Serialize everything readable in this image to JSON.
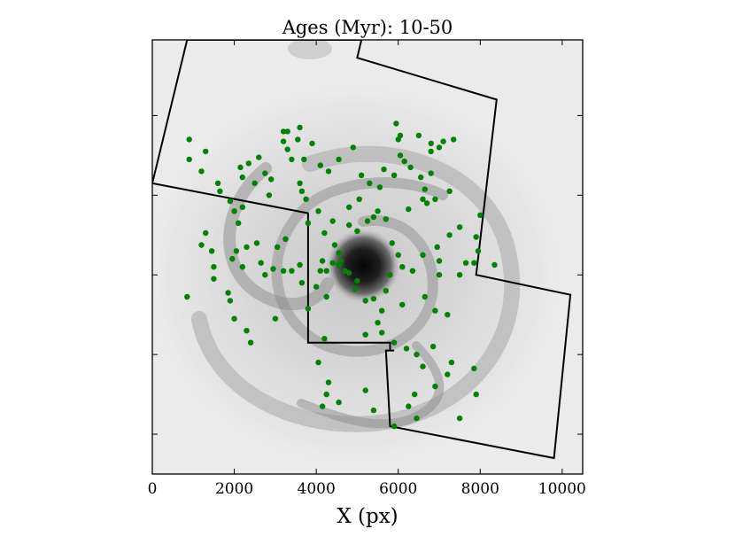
{
  "chart_data": {
    "type": "scatter",
    "title": "Ages (Myr): 10-50",
    "xlabel": "X (px)",
    "ylabel": "",
    "xlim": [
      0,
      10500
    ],
    "ylim": [
      0,
      10900
    ],
    "x_ticks": [
      0,
      2000,
      4000,
      6000,
      8000,
      10000
    ],
    "x_tick_labels": [
      "0",
      "2000",
      "4000",
      "6000",
      "8000",
      "10000"
    ],
    "y_ticks": [
      1000,
      3000,
      5000,
      7000,
      9000
    ],
    "y_tick_labels": [],
    "background_image": "grayscale galaxy map (inverted)",
    "point_color": "#008000",
    "outline_color": "#000000",
    "footprint_outline": [
      [
        850,
        10900
      ],
      [
        5100,
        10900
      ],
      [
        5000,
        10450
      ],
      [
        8400,
        9400
      ],
      [
        7900,
        5000
      ],
      [
        10200,
        4500
      ],
      [
        9800,
        400
      ],
      [
        5800,
        1200
      ],
      [
        5700,
        3100
      ],
      [
        5900,
        3100
      ],
      [
        5900,
        3100
      ],
      [
        5800,
        3100
      ],
      [
        5800,
        3300
      ],
      [
        3800,
        3300
      ],
      [
        3800,
        6550
      ],
      [
        0,
        7300
      ]
    ],
    "series": [
      {
        "values": [
          [
            900,
            8400
          ],
          [
            900,
            7900
          ],
          [
            1300,
            8100
          ],
          [
            1200,
            7600
          ],
          [
            1600,
            7300
          ],
          [
            1650,
            7100
          ],
          [
            1900,
            6850
          ],
          [
            2000,
            6600
          ],
          [
            2200,
            6700
          ],
          [
            2100,
            6300
          ],
          [
            1300,
            6050
          ],
          [
            1200,
            5750
          ],
          [
            1450,
            5600
          ],
          [
            1500,
            5200
          ],
          [
            1500,
            4900
          ],
          [
            1950,
            5400
          ],
          [
            2050,
            5600
          ],
          [
            2300,
            5700
          ],
          [
            2200,
            5200
          ],
          [
            2550,
            5800
          ],
          [
            2650,
            5300
          ],
          [
            2750,
            5000
          ],
          [
            2950,
            5150
          ],
          [
            3200,
            5100
          ],
          [
            3400,
            5100
          ],
          [
            3600,
            5250
          ],
          [
            3050,
            5700
          ],
          [
            3250,
            5900
          ],
          [
            2350,
            7800
          ],
          [
            2150,
            7700
          ],
          [
            2200,
            7450
          ],
          [
            2600,
            7950
          ],
          [
            2500,
            7300
          ],
          [
            2750,
            7550
          ],
          [
            2900,
            7400
          ],
          [
            2850,
            7000
          ],
          [
            3200,
            8350
          ],
          [
            3300,
            8150
          ],
          [
            3200,
            8600
          ],
          [
            3300,
            8600
          ],
          [
            3600,
            8700
          ],
          [
            3550,
            8400
          ],
          [
            3400,
            7900
          ],
          [
            3900,
            8300
          ],
          [
            3700,
            7900
          ],
          [
            4100,
            7750
          ],
          [
            4300,
            7600
          ],
          [
            4550,
            7900
          ],
          [
            4900,
            8200
          ],
          [
            3600,
            7300
          ],
          [
            3750,
            6900
          ],
          [
            3650,
            7100
          ],
          [
            3800,
            6300
          ],
          [
            4050,
            6600
          ],
          [
            4400,
            6350
          ],
          [
            4200,
            6050
          ],
          [
            4450,
            5750
          ],
          [
            4550,
            5550
          ],
          [
            4150,
            5350
          ],
          [
            4400,
            5300
          ],
          [
            4250,
            5100
          ],
          [
            4100,
            5100
          ],
          [
            4600,
            5350
          ],
          [
            4550,
            5250
          ],
          [
            4700,
            5100
          ],
          [
            4800,
            5050
          ],
          [
            5000,
            4850
          ],
          [
            4250,
            4450
          ],
          [
            4950,
            4650
          ],
          [
            5200,
            4350
          ],
          [
            3800,
            4150
          ],
          [
            4800,
            6250
          ],
          [
            5000,
            6100
          ],
          [
            5250,
            6350
          ],
          [
            5400,
            6450
          ],
          [
            5700,
            6400
          ],
          [
            5500,
            6600
          ],
          [
            4800,
            6700
          ],
          [
            5100,
            7500
          ],
          [
            5300,
            7300
          ],
          [
            5050,
            6900
          ],
          [
            5550,
            7200
          ],
          [
            5650,
            7650
          ],
          [
            5900,
            7500
          ],
          [
            6150,
            7850
          ],
          [
            6050,
            8000
          ],
          [
            6000,
            8400
          ],
          [
            6300,
            7700
          ],
          [
            6550,
            7450
          ],
          [
            6800,
            7550
          ],
          [
            6650,
            7150
          ],
          [
            6600,
            6900
          ],
          [
            6900,
            6900
          ],
          [
            6700,
            6800
          ],
          [
            6800,
            8100
          ],
          [
            7000,
            8200
          ],
          [
            6250,
            6650
          ],
          [
            5850,
            5800
          ],
          [
            6000,
            5500
          ],
          [
            6350,
            5100
          ],
          [
            6600,
            5500
          ],
          [
            6950,
            5700
          ],
          [
            7000,
            5350
          ],
          [
            7000,
            5000
          ],
          [
            7250,
            7100
          ],
          [
            7350,
            8400
          ],
          [
            6050,
            8500
          ],
          [
            5950,
            8800
          ],
          [
            6500,
            8500
          ],
          [
            6800,
            8300
          ],
          [
            7100,
            8350
          ],
          [
            7900,
            5950
          ],
          [
            7950,
            5600
          ],
          [
            7650,
            5300
          ],
          [
            7850,
            5300
          ],
          [
            7500,
            5000
          ],
          [
            8350,
            5250
          ],
          [
            7250,
            6000
          ],
          [
            7500,
            6200
          ],
          [
            8000,
            6500
          ],
          [
            5400,
            4400
          ],
          [
            5600,
            4100
          ],
          [
            6100,
            4250
          ],
          [
            6100,
            5200
          ],
          [
            5800,
            5000
          ],
          [
            5700,
            4600
          ],
          [
            5500,
            3800
          ],
          [
            5600,
            3550
          ],
          [
            5900,
            3300
          ],
          [
            6200,
            3150
          ],
          [
            6450,
            3000
          ],
          [
            6850,
            3200
          ],
          [
            5200,
            3500
          ],
          [
            3000,
            3900
          ],
          [
            4200,
            3400
          ],
          [
            4050,
            2800
          ],
          [
            4300,
            2300
          ],
          [
            4250,
            2000
          ],
          [
            4150,
            1700
          ],
          [
            4550,
            1800
          ],
          [
            5200,
            2100
          ],
          [
            5400,
            1600
          ],
          [
            5900,
            1200
          ],
          [
            6250,
            1700
          ],
          [
            6450,
            1400
          ],
          [
            6400,
            2000
          ],
          [
            6900,
            2200
          ],
          [
            7200,
            2500
          ],
          [
            7300,
            2800
          ],
          [
            6600,
            2700
          ],
          [
            6900,
            4100
          ],
          [
            6650,
            4450
          ],
          [
            7200,
            4000
          ],
          [
            7850,
            2650
          ],
          [
            7900,
            2000
          ],
          [
            7500,
            1400
          ],
          [
            2300,
            3600
          ],
          [
            2400,
            3300
          ],
          [
            2000,
            3900
          ],
          [
            1900,
            4350
          ],
          [
            1850,
            4550
          ],
          [
            850,
            4450
          ],
          [
            3650,
            4800
          ],
          [
            4000,
            4700
          ]
        ]
      }
    ]
  }
}
